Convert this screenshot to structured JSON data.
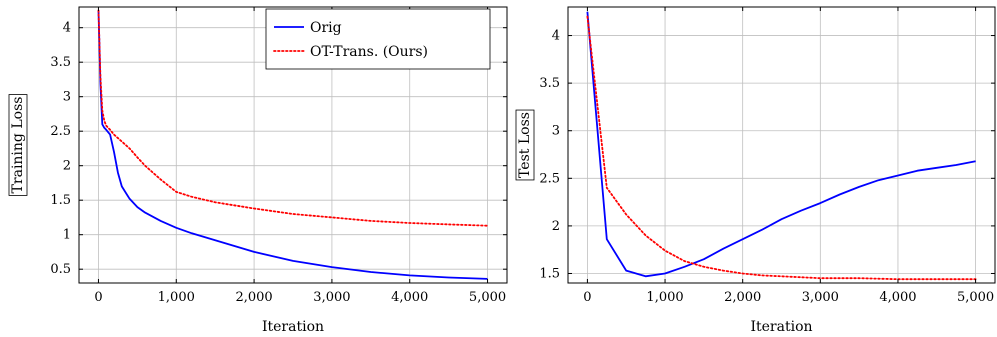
{
  "chart_data": [
    {
      "type": "line",
      "xlabel": "Iteration",
      "ylabel": "Training Loss",
      "xlim": [
        -250,
        5250
      ],
      "ylim": [
        0.3,
        4.3
      ],
      "xticks": [
        0,
        1000,
        2000,
        3000,
        4000,
        5000
      ],
      "xtick_labels": [
        "0",
        "1,000",
        "2,000",
        "3,000",
        "4,000",
        "5,000"
      ],
      "yticks": [
        0.5,
        1,
        1.5,
        2,
        2.5,
        3,
        3.5,
        4
      ],
      "ytick_labels": [
        "0.5",
        "1",
        "1.5",
        "2",
        "2.5",
        "3",
        "3.5",
        "4"
      ],
      "grid": true,
      "legend": {
        "position": "top-right"
      },
      "series": [
        {
          "name": "Orig",
          "color": "#0000ff",
          "style": "solid",
          "x": [
            0,
            25,
            50,
            75,
            100,
            150,
            200,
            250,
            300,
            400,
            500,
            600,
            800,
            1000,
            1200,
            1500,
            2000,
            2500,
            3000,
            3500,
            4000,
            4500,
            5000
          ],
          "y": [
            4.25,
            3.2,
            2.6,
            2.55,
            2.52,
            2.45,
            2.2,
            1.9,
            1.7,
            1.52,
            1.4,
            1.32,
            1.2,
            1.1,
            1.02,
            0.92,
            0.75,
            0.62,
            0.53,
            0.46,
            0.41,
            0.38,
            0.36
          ]
        },
        {
          "name": "OT-Trans. (Ours)",
          "color": "#ff0000",
          "style": "dotted",
          "x": [
            0,
            25,
            50,
            75,
            100,
            150,
            200,
            300,
            400,
            500,
            600,
            800,
            1000,
            1200,
            1500,
            2000,
            2500,
            3000,
            3500,
            4000,
            4500,
            5000
          ],
          "y": [
            4.25,
            3.3,
            2.8,
            2.65,
            2.58,
            2.52,
            2.45,
            2.35,
            2.25,
            2.12,
            2.0,
            1.8,
            1.62,
            1.55,
            1.47,
            1.38,
            1.3,
            1.25,
            1.2,
            1.17,
            1.15,
            1.13
          ]
        }
      ]
    },
    {
      "type": "line",
      "xlabel": "Iteration",
      "ylabel": "Test Loss",
      "xlim": [
        -250,
        5250
      ],
      "ylim": [
        1.4,
        4.3
      ],
      "xticks": [
        0,
        1000,
        2000,
        3000,
        4000,
        5000
      ],
      "xtick_labels": [
        "0",
        "1,000",
        "2,000",
        "3,000",
        "4,000",
        "5,000"
      ],
      "yticks": [
        1.5,
        2,
        2.5,
        3,
        3.5,
        4
      ],
      "ytick_labels": [
        "1.5",
        "2",
        "2.5",
        "3",
        "3.5",
        "4"
      ],
      "grid": true,
      "series": [
        {
          "color": "#0000ff",
          "style": "solid",
          "x": [
            0,
            250,
            500,
            750,
            1000,
            1250,
            1500,
            1750,
            2000,
            2250,
            2500,
            2750,
            3000,
            3250,
            3500,
            3750,
            4000,
            4250,
            4500,
            4750,
            5000
          ],
          "y": [
            4.25,
            1.86,
            1.53,
            1.47,
            1.5,
            1.57,
            1.65,
            1.76,
            1.86,
            1.96,
            2.07,
            2.16,
            2.24,
            2.33,
            2.41,
            2.48,
            2.53,
            2.58,
            2.61,
            2.64,
            2.68
          ]
        },
        {
          "color": "#ff0000",
          "style": "dotted",
          "x": [
            0,
            250,
            500,
            750,
            1000,
            1250,
            1500,
            1750,
            2000,
            2250,
            2500,
            3000,
            3500,
            4000,
            4500,
            5000
          ],
          "y": [
            4.2,
            2.4,
            2.12,
            1.9,
            1.74,
            1.63,
            1.57,
            1.53,
            1.5,
            1.48,
            1.47,
            1.45,
            1.45,
            1.44,
            1.44,
            1.44
          ]
        }
      ]
    }
  ]
}
